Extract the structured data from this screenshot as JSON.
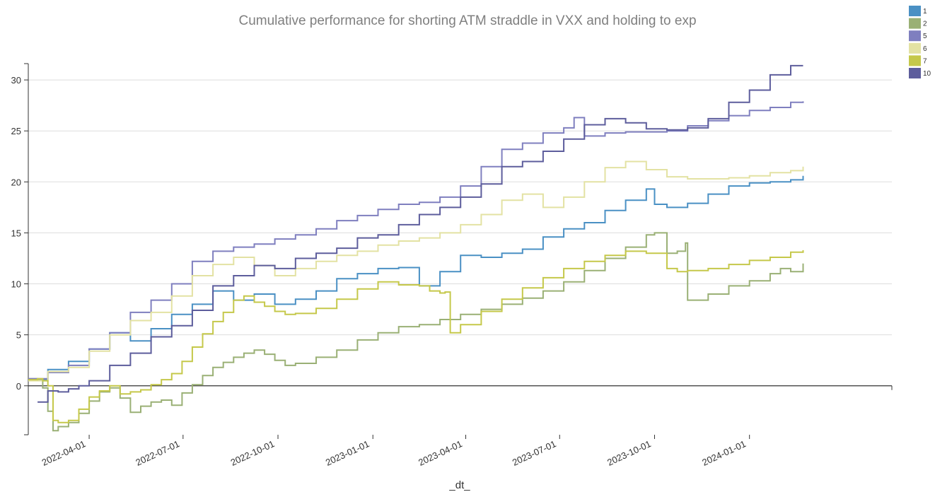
{
  "chart_data": {
    "type": "line",
    "title": "Cumulative performance for shorting ATM straddle in VXX and holding to exp",
    "xlabel": "_dt_",
    "ylabel": "",
    "ylim": [
      -4.8,
      31.6
    ],
    "xlim": [
      -59,
      778
    ],
    "x_unit": "days since 2022-04-01",
    "x_ticks": [
      {
        "x": 0,
        "label": "2022-04-01"
      },
      {
        "x": 91,
        "label": "2022-07-01"
      },
      {
        "x": 183,
        "label": "2022-10-01"
      },
      {
        "x": 275,
        "label": "2023-01-01"
      },
      {
        "x": 365,
        "label": "2023-04-01"
      },
      {
        "x": 456,
        "label": "2023-07-01"
      },
      {
        "x": 548,
        "label": "2023-10-01"
      },
      {
        "x": 640,
        "label": "2024-01-01"
      }
    ],
    "y_ticks": [
      {
        "y": 0,
        "label": "0"
      },
      {
        "y": 5,
        "label": "5"
      },
      {
        "y": 10,
        "label": "10"
      },
      {
        "y": 15,
        "label": "15"
      },
      {
        "y": 20,
        "label": "20"
      },
      {
        "y": 25,
        "label": "25"
      },
      {
        "y": 30,
        "label": "30"
      }
    ],
    "legend_position": "top-right",
    "series": [
      {
        "name": "1",
        "color": "#4a90c4",
        "x": [
          -59,
          -40,
          -20,
          0,
          20,
          40,
          60,
          80,
          100,
          120,
          140,
          160,
          180,
          200,
          220,
          240,
          260,
          280,
          300,
          320,
          340,
          360,
          380,
          400,
          420,
          440,
          460,
          480,
          500,
          520,
          540,
          548,
          560,
          580,
          600,
          620,
          640,
          660,
          670,
          680,
          692
        ],
        "y": [
          0.6,
          1.6,
          2.4,
          3.6,
          5.2,
          4.4,
          5.6,
          7.0,
          8.0,
          9.3,
          8.4,
          9.0,
          8.0,
          8.5,
          9.3,
          10.5,
          11.0,
          11.5,
          11.6,
          9.8,
          11.2,
          12.8,
          12.6,
          13.0,
          13.4,
          14.6,
          15.4,
          16.0,
          17.2,
          18.2,
          19.3,
          17.8,
          17.5,
          17.9,
          18.8,
          19.6,
          19.9,
          20.0,
          20.0,
          20.2,
          20.6
        ]
      },
      {
        "name": "2",
        "color": "#9ab075",
        "x": [
          -59,
          -50,
          -45,
          -40,
          -35,
          -30,
          -20,
          -10,
          0,
          10,
          20,
          30,
          40,
          50,
          60,
          70,
          80,
          90,
          100,
          110,
          120,
          130,
          140,
          150,
          160,
          170,
          180,
          190,
          200,
          220,
          240,
          260,
          280,
          300,
          320,
          340,
          360,
          380,
          400,
          420,
          440,
          460,
          480,
          500,
          520,
          540,
          548,
          560,
          570,
          578,
          580,
          600,
          620,
          640,
          660,
          670,
          680,
          692
        ],
        "y": [
          0.7,
          0.6,
          -0.2,
          -2.5,
          -4.4,
          -4.0,
          -3.6,
          -2.7,
          -1.5,
          -0.6,
          -0.2,
          -1.2,
          -2.6,
          -2.0,
          -1.6,
          -1.4,
          -1.9,
          -0.7,
          0.1,
          1.0,
          1.8,
          2.3,
          2.8,
          3.2,
          3.5,
          3.1,
          2.5,
          2.0,
          2.2,
          2.8,
          3.5,
          4.5,
          5.2,
          5.8,
          6.0,
          6.5,
          7.0,
          7.5,
          8.0,
          8.6,
          9.3,
          10.2,
          11.3,
          12.5,
          13.6,
          14.8,
          15.0,
          13.0,
          13.2,
          14.0,
          8.4,
          9.0,
          9.8,
          10.3,
          11.0,
          11.5,
          11.2,
          12.0
        ]
      },
      {
        "name": "5",
        "color": "#7f7fbf",
        "x": [
          -59,
          -40,
          -20,
          0,
          20,
          40,
          60,
          80,
          100,
          120,
          140,
          160,
          180,
          200,
          220,
          240,
          260,
          280,
          300,
          320,
          340,
          360,
          380,
          400,
          420,
          440,
          460,
          470,
          480,
          500,
          520,
          540,
          560,
          580,
          600,
          620,
          640,
          660,
          680,
          692
        ],
        "y": [
          0.7,
          1.3,
          2.0,
          3.6,
          5.2,
          7.2,
          8.4,
          10.0,
          12.2,
          13.2,
          13.6,
          13.9,
          14.4,
          14.8,
          15.4,
          16.2,
          16.7,
          17.3,
          17.8,
          18.0,
          18.5,
          19.6,
          21.5,
          23.2,
          23.8,
          24.8,
          25.3,
          26.3,
          24.5,
          24.8,
          24.9,
          24.9,
          25.0,
          25.5,
          26.0,
          26.5,
          27.0,
          27.3,
          27.8,
          27.9
        ]
      },
      {
        "name": "6",
        "color": "#e3e2a3",
        "x": [
          -59,
          -40,
          -20,
          0,
          20,
          40,
          60,
          80,
          100,
          120,
          140,
          160,
          180,
          200,
          220,
          240,
          260,
          280,
          300,
          320,
          340,
          360,
          380,
          400,
          420,
          440,
          460,
          480,
          500,
          520,
          540,
          560,
          580,
          600,
          620,
          640,
          660,
          680,
          692
        ],
        "y": [
          0.5,
          1.4,
          1.8,
          3.4,
          5.0,
          6.4,
          7.2,
          8.8,
          10.8,
          11.9,
          12.6,
          11.8,
          10.8,
          11.5,
          12.2,
          12.8,
          13.2,
          13.8,
          14.2,
          14.5,
          15.0,
          15.8,
          16.8,
          18.2,
          18.8,
          17.5,
          18.5,
          20.0,
          21.4,
          22.0,
          21.2,
          20.5,
          20.3,
          20.3,
          20.4,
          20.6,
          20.9,
          21.1,
          21.5
        ]
      },
      {
        "name": "7",
        "color": "#c5c84a",
        "x": [
          -59,
          -50,
          -45,
          -40,
          -35,
          -30,
          -20,
          -10,
          0,
          10,
          20,
          30,
          40,
          50,
          60,
          70,
          80,
          90,
          100,
          110,
          120,
          130,
          140,
          150,
          160,
          170,
          180,
          190,
          200,
          220,
          240,
          260,
          280,
          300,
          320,
          330,
          340,
          345,
          350,
          360,
          380,
          400,
          420,
          440,
          460,
          480,
          500,
          520,
          540,
          548,
          560,
          570,
          580,
          600,
          620,
          640,
          660,
          680,
          692
        ],
        "y": [
          0.6,
          0.7,
          0.5,
          0.0,
          -3.4,
          -3.6,
          -3.4,
          -2.3,
          -1.1,
          -0.5,
          0.0,
          -0.8,
          -0.6,
          -0.4,
          0.1,
          0.6,
          1.2,
          2.4,
          3.8,
          5.1,
          6.3,
          7.2,
          8.4,
          8.8,
          8.2,
          7.8,
          7.3,
          7.0,
          7.1,
          7.6,
          8.5,
          9.5,
          10.2,
          9.9,
          9.8,
          9.3,
          9.1,
          9.2,
          5.2,
          6.0,
          7.3,
          8.5,
          9.6,
          10.6,
          11.5,
          12.2,
          12.8,
          13.2,
          13.0,
          13.0,
          11.5,
          11.2,
          11.3,
          11.5,
          11.9,
          12.3,
          12.6,
          13.1,
          13.3
        ]
      },
      {
        "name": "10",
        "color": "#5d5d9c",
        "x": [
          -50,
          -40,
          -30,
          -20,
          -10,
          0,
          20,
          40,
          60,
          80,
          100,
          120,
          140,
          160,
          180,
          200,
          220,
          240,
          260,
          280,
          300,
          320,
          340,
          360,
          380,
          400,
          420,
          440,
          460,
          480,
          500,
          520,
          540,
          560,
          580,
          600,
          620,
          640,
          660,
          680,
          692
        ],
        "y": [
          -1.6,
          -0.5,
          -0.6,
          -0.3,
          0.0,
          0.5,
          2.0,
          3.2,
          4.8,
          5.9,
          7.4,
          9.8,
          10.8,
          11.8,
          11.5,
          12.5,
          13.0,
          13.5,
          14.5,
          14.8,
          15.8,
          16.8,
          17.5,
          18.5,
          19.8,
          21.5,
          22.0,
          23.0,
          24.2,
          25.6,
          26.2,
          25.8,
          25.2,
          25.1,
          25.3,
          26.2,
          27.8,
          29.0,
          30.5,
          31.4,
          31.4
        ]
      }
    ]
  }
}
